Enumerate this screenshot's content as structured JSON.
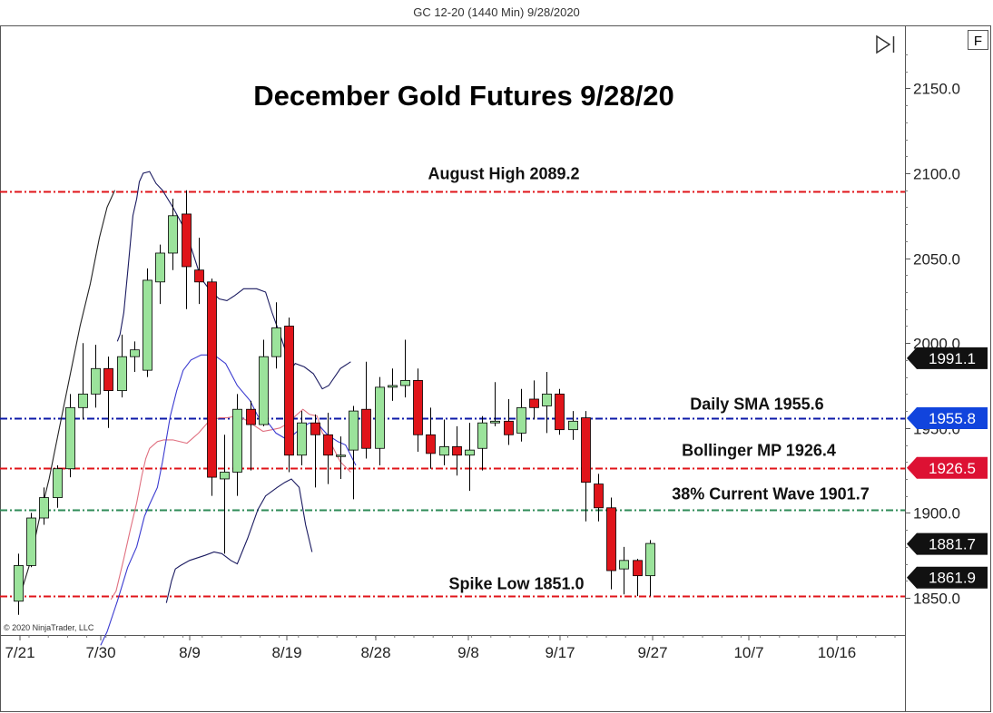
{
  "header": "GC 12-20 (1440 Min)  9/28/2020",
  "title": "December Gold Futures 9/28/20",
  "copyright": "© 2020 NinjaTrader, LLC",
  "f_button": "F",
  "icons": {
    "scroll_end": "scroll-to-end-icon"
  },
  "colors": {
    "up": "#9be39b",
    "down": "#e0141a",
    "red_line": "#e0141a",
    "blue_line": "#0d1aa8",
    "green_line": "#2e8b57",
    "bb_upper": "#1a1a60",
    "bb_mid": "#e07080",
    "bb_lower": "#3a3ad0"
  },
  "chart_data": {
    "type": "candlestick",
    "ylim": [
      1835,
      2180
    ],
    "y_ticks": [
      {
        "value": 1850,
        "label": "1850.0"
      },
      {
        "value": 1900,
        "label": "1900.0"
      },
      {
        "value": 1950,
        "label": "1950.0"
      },
      {
        "value": 2000,
        "label": "2000.0"
      },
      {
        "value": 2050,
        "label": "2050.0"
      },
      {
        "value": 2100,
        "label": "2100.0"
      },
      {
        "value": 2150,
        "label": "2150.0"
      }
    ],
    "x_ticks": [
      "7/21",
      "7/30",
      "8/9",
      "8/19",
      "8/28",
      "9/8",
      "9/17",
      "9/27",
      "10/7",
      "10/16"
    ],
    "candles": [
      {
        "o": 1848,
        "h": 1876,
        "l": 1840,
        "c": 1869
      },
      {
        "o": 1869,
        "h": 1900,
        "l": 1868,
        "c": 1897
      },
      {
        "o": 1897,
        "h": 1915,
        "l": 1893,
        "c": 1909
      },
      {
        "o": 1909,
        "h": 1928,
        "l": 1903,
        "c": 1926
      },
      {
        "o": 1926,
        "h": 1970,
        "l": 1921,
        "c": 1962
      },
      {
        "o": 1962,
        "h": 2000,
        "l": 1955,
        "c": 1970
      },
      {
        "o": 1970,
        "h": 1999,
        "l": 1962,
        "c": 1985
      },
      {
        "o": 1985,
        "h": 1992,
        "l": 1950,
        "c": 1972
      },
      {
        "o": 1972,
        "h": 2005,
        "l": 1968,
        "c": 1992
      },
      {
        "o": 1992,
        "h": 2001,
        "l": 1983,
        "c": 1996
      },
      {
        "o": 1984,
        "h": 2044,
        "l": 1980,
        "c": 2037
      },
      {
        "o": 2036,
        "h": 2058,
        "l": 2023,
        "c": 2053
      },
      {
        "o": 2053,
        "h": 2085,
        "l": 2043,
        "c": 2075
      },
      {
        "o": 2076,
        "h": 2090,
        "l": 2020,
        "c": 2045
      },
      {
        "o": 2043,
        "h": 2062,
        "l": 2023,
        "c": 2036
      },
      {
        "o": 2036,
        "h": 2038,
        "l": 1910,
        "c": 1921
      },
      {
        "o": 1920,
        "h": 1946,
        "l": 1876,
        "c": 1924
      },
      {
        "o": 1924,
        "h": 1970,
        "l": 1910,
        "c": 1961
      },
      {
        "o": 1961,
        "h": 1966,
        "l": 1925,
        "c": 1952
      },
      {
        "o": 1952,
        "h": 2002,
        "l": 1951,
        "c": 1992
      },
      {
        "o": 1992,
        "h": 2024,
        "l": 1985,
        "c": 2009
      },
      {
        "o": 2010,
        "h": 2015,
        "l": 1924,
        "c": 1934
      },
      {
        "o": 1934,
        "h": 1960,
        "l": 1928,
        "c": 1953
      },
      {
        "o": 1953,
        "h": 1958,
        "l": 1915,
        "c": 1946
      },
      {
        "o": 1946,
        "h": 1959,
        "l": 1917,
        "c": 1934
      },
      {
        "o": 1934,
        "h": 1945,
        "l": 1920,
        "c": 1934
      },
      {
        "o": 1937,
        "h": 1963,
        "l": 1908,
        "c": 1960
      },
      {
        "o": 1961,
        "h": 1989,
        "l": 1932,
        "c": 1938
      },
      {
        "o": 1938,
        "h": 1980,
        "l": 1928,
        "c": 1974
      },
      {
        "o": 1974,
        "h": 1985,
        "l": 1966,
        "c": 1975
      },
      {
        "o": 1975,
        "h": 2002,
        "l": 1968,
        "c": 1978
      },
      {
        "o": 1978,
        "h": 1985,
        "l": 1936,
        "c": 1946
      },
      {
        "o": 1946,
        "h": 1962,
        "l": 1926,
        "c": 1935
      },
      {
        "o": 1934,
        "h": 1955,
        "l": 1928,
        "c": 1939
      },
      {
        "o": 1939,
        "h": 1951,
        "l": 1922,
        "c": 1934
      },
      {
        "o": 1934,
        "h": 1953,
        "l": 1913,
        "c": 1937
      },
      {
        "o": 1938,
        "h": 1957,
        "l": 1925,
        "c": 1953
      },
      {
        "o": 1953,
        "h": 1977,
        "l": 1951,
        "c": 1954
      },
      {
        "o": 1954,
        "h": 1967,
        "l": 1940,
        "c": 1946
      },
      {
        "o": 1947,
        "h": 1973,
        "l": 1942,
        "c": 1962
      },
      {
        "o": 1967,
        "h": 1978,
        "l": 1955,
        "c": 1962
      },
      {
        "o": 1963,
        "h": 1983,
        "l": 1947,
        "c": 1970
      },
      {
        "o": 1970,
        "h": 1973,
        "l": 1946,
        "c": 1949
      },
      {
        "o": 1949,
        "h": 1960,
        "l": 1943,
        "c": 1954
      },
      {
        "o": 1956,
        "h": 1960,
        "l": 1895,
        "c": 1918
      },
      {
        "o": 1917,
        "h": 1923,
        "l": 1895,
        "c": 1903
      },
      {
        "o": 1903,
        "h": 1909,
        "l": 1855,
        "c": 1866
      },
      {
        "o": 1867,
        "h": 1880,
        "l": 1852,
        "c": 1872
      },
      {
        "o": 1872,
        "h": 1873,
        "l": 1851,
        "c": 1863
      },
      {
        "o": 1863,
        "h": 1884,
        "l": 1851,
        "c": 1882
      }
    ],
    "bollinger_upper": [
      [
        7.7,
        2001
      ],
      [
        7.9,
        2005
      ],
      [
        8.2,
        2018
      ],
      [
        8.5,
        2042
      ],
      [
        8.9,
        2075
      ],
      [
        9.2,
        2085
      ],
      [
        9.4,
        2095
      ],
      [
        9.7,
        2100
      ],
      [
        10.2,
        2101
      ],
      [
        10.7,
        2094
      ],
      [
        11.2,
        2090
      ],
      [
        12.0,
        2080
      ],
      [
        13.0,
        2066
      ],
      [
        14.2,
        2038
      ],
      [
        14.9,
        2031
      ],
      [
        15.6,
        2026
      ],
      [
        16.2,
        2025
      ],
      [
        16.8,
        2028
      ],
      [
        17.5,
        2032
      ],
      [
        18.5,
        2032
      ],
      [
        19.2,
        2030
      ],
      [
        19.7,
        2018
      ],
      [
        20.5,
        2001
      ],
      [
        21.2,
        1985
      ],
      [
        21.5,
        1988
      ],
      [
        22.2,
        1986
      ],
      [
        22.9,
        1982
      ],
      [
        23.6,
        1973
      ],
      [
        24.1,
        1975
      ],
      [
        25.0,
        1985
      ],
      [
        25.8,
        1989
      ]
    ],
    "bollinger_mid": [
      [
        7.2,
        1849
      ],
      [
        7.6,
        1854
      ],
      [
        8.2,
        1873
      ],
      [
        8.7,
        1890
      ],
      [
        9.2,
        1906
      ],
      [
        9.6,
        1922
      ],
      [
        9.9,
        1932
      ],
      [
        10.2,
        1938
      ],
      [
        10.8,
        1942
      ],
      [
        11.3,
        1943
      ],
      [
        12.0,
        1943
      ],
      [
        13.1,
        1941
      ],
      [
        14.0,
        1947
      ],
      [
        14.8,
        1954
      ],
      [
        15.6,
        1956
      ],
      [
        16.2,
        1956
      ],
      [
        16.9,
        1957
      ],
      [
        17.6,
        1955
      ],
      [
        18.4,
        1951
      ],
      [
        19.0,
        1948
      ],
      [
        19.7,
        1949
      ],
      [
        20.3,
        1950
      ],
      [
        21.0,
        1953
      ],
      [
        21.5,
        1957
      ],
      [
        22.1,
        1961
      ],
      [
        22.6,
        1958
      ],
      [
        23.2,
        1957
      ],
      [
        23.6,
        1947
      ],
      [
        24.2,
        1942
      ],
      [
        25.0,
        1930
      ],
      [
        25.8,
        1924
      ]
    ],
    "bollinger_lower": [
      [
        6.4,
        1822
      ],
      [
        6.9,
        1830
      ],
      [
        7.7,
        1848
      ],
      [
        8.5,
        1868
      ],
      [
        9.2,
        1880
      ],
      [
        9.8,
        1898
      ],
      [
        10.2,
        1905
      ],
      [
        10.8,
        1915
      ],
      [
        11.2,
        1930
      ],
      [
        11.8,
        1957
      ],
      [
        12.3,
        1972
      ],
      [
        12.8,
        1984
      ],
      [
        13.4,
        1990
      ],
      [
        14.2,
        1993
      ],
      [
        15.2,
        1993
      ],
      [
        16.1,
        1988
      ],
      [
        17.0,
        1975
      ],
      [
        18.0,
        1966
      ],
      [
        18.6,
        1957
      ],
      [
        19.4,
        1953
      ],
      [
        20.0,
        1947
      ],
      [
        20.9,
        1943
      ],
      [
        21.8,
        1949
      ],
      [
        22.6,
        1953
      ],
      [
        23.4,
        1951
      ],
      [
        24.0,
        1946
      ],
      [
        24.8,
        1942
      ],
      [
        25.4,
        1940
      ],
      [
        26.2,
        1928
      ]
    ],
    "bollinger_lower2": [
      [
        11.5,
        1847
      ],
      [
        11.9,
        1860
      ],
      [
        12.2,
        1867
      ],
      [
        12.6,
        1869
      ],
      [
        13.3,
        1872
      ],
      [
        14.5,
        1875
      ],
      [
        15.2,
        1877
      ],
      [
        15.8,
        1876
      ],
      [
        16.5,
        1872
      ],
      [
        17.0,
        1870
      ],
      [
        17.8,
        1885
      ],
      [
        18.6,
        1902
      ],
      [
        19.2,
        1910
      ],
      [
        20.1,
        1915
      ],
      [
        20.7,
        1918
      ],
      [
        21.2,
        1920
      ],
      [
        21.8,
        1915
      ],
      [
        22.3,
        1893
      ],
      [
        22.8,
        1877
      ]
    ],
    "sma_line": [
      [
        0.3,
        1855
      ],
      [
        0.9,
        1870
      ],
      [
        1.6,
        1895
      ],
      [
        2.4,
        1920
      ],
      [
        3.2,
        1950
      ],
      [
        4.0,
        1980
      ],
      [
        4.8,
        2010
      ],
      [
        5.6,
        2035
      ],
      [
        6.3,
        2062
      ],
      [
        6.9,
        2080
      ],
      [
        7.5,
        2090
      ]
    ],
    "horizontal_lines": [
      {
        "value": 2089.2,
        "color": "#e0141a",
        "label": "August High 2089.2"
      },
      {
        "value": 1955.6,
        "color": "#0d1aa8",
        "label": "Daily SMA 1955.6"
      },
      {
        "value": 1926.4,
        "color": "#e0141a",
        "label": "Bollinger MP 1926.4"
      },
      {
        "value": 1901.7,
        "color": "#2e8b57",
        "label": "38% Current Wave 1901.7"
      },
      {
        "value": 1851.0,
        "color": "#e0141a",
        "label": "Spike Low 1851.0"
      }
    ],
    "price_flags": [
      {
        "value": 1991.1,
        "label": "1991.1",
        "color": "#111111"
      },
      {
        "value": 1955.8,
        "label": "1955.8",
        "color": "#1144dd"
      },
      {
        "value": 1926.5,
        "label": "1926.5",
        "color": "#dd1133"
      },
      {
        "value": 1881.7,
        "label": "1881.7",
        "color": "#111111"
      },
      {
        "value": 1861.9,
        "label": "1861.9",
        "color": "#111111"
      }
    ]
  }
}
